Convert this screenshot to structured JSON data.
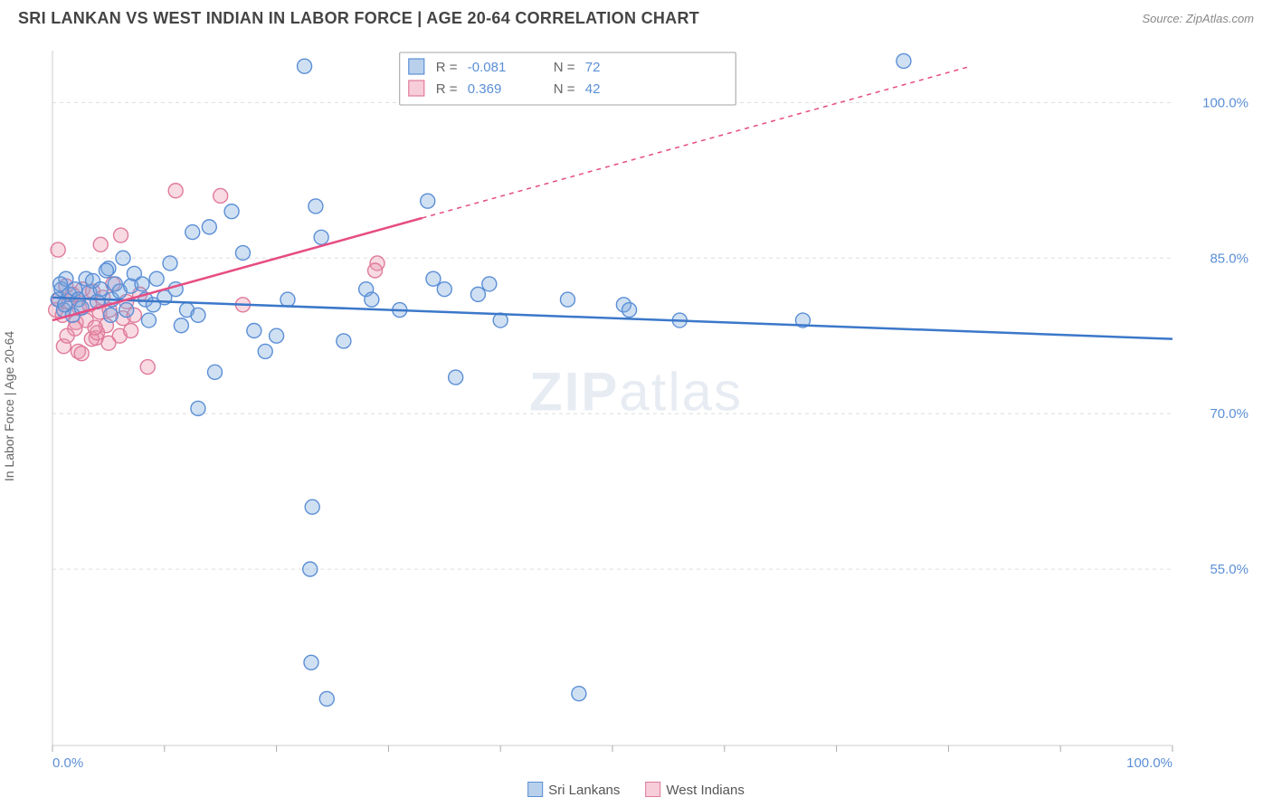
{
  "header": {
    "title": "SRI LANKAN VS WEST INDIAN IN LABOR FORCE | AGE 20-64 CORRELATION CHART",
    "source": "Source: ZipAtlas.com"
  },
  "ylabel": "In Labor Force | Age 20-64",
  "watermark": {
    "part1": "ZIP",
    "part2": "atlas"
  },
  "chart": {
    "type": "scatter-correlation",
    "xlim": [
      0,
      100
    ],
    "ylim": [
      38,
      105
    ],
    "x_ticks": [
      0,
      10,
      20,
      30,
      40,
      50,
      60,
      70,
      80,
      90,
      100
    ],
    "x_tick_labels": {
      "0": "0.0%",
      "100": "100.0%"
    },
    "y_ticks": [
      55,
      70,
      85,
      100
    ],
    "y_tick_labels": {
      "55": "55.0%",
      "70": "70.0%",
      "85": "85.0%",
      "100": "100.0%"
    },
    "grid_color": "#dddddd",
    "border_color": "#cccccc",
    "background": "#ffffff",
    "marker_radius": 8,
    "marker_stroke_width": 1.4,
    "series": [
      {
        "name": "Sri Lankans",
        "fill": "rgba(120,165,220,0.35)",
        "stroke": "#5b8fd6",
        "swatch_fill": "#b9d0ec",
        "swatch_stroke": "#5b8fd6",
        "trend_color": "#3b78c9",
        "trend": {
          "x1": 0,
          "y1": 81.2,
          "x2": 100,
          "y2": 77.2,
          "solid_until": 100
        },
        "R": "-0.081",
        "N": "72",
        "points": [
          [
            0.5,
            81
          ],
          [
            0.8,
            82
          ],
          [
            1,
            80
          ],
          [
            1.2,
            83
          ],
          [
            1.5,
            81.5
          ],
          [
            1.8,
            79.5
          ],
          [
            0.7,
            82.5
          ],
          [
            1.1,
            80.5
          ],
          [
            2,
            82
          ],
          [
            2.3,
            81
          ],
          [
            2.6,
            80.2
          ],
          [
            3,
            83
          ],
          [
            3.3,
            81.7
          ],
          [
            3.6,
            82.8
          ],
          [
            4,
            80.8
          ],
          [
            4.3,
            82
          ],
          [
            5,
            84
          ],
          [
            5.3,
            81
          ],
          [
            5.6,
            82.5
          ],
          [
            6,
            81.8
          ],
          [
            6.3,
            85
          ],
          [
            6.6,
            80
          ],
          [
            7,
            82.3
          ],
          [
            7.3,
            83.5
          ],
          [
            4.8,
            83.8
          ],
          [
            5.2,
            79.5
          ],
          [
            8,
            82.5
          ],
          [
            8.3,
            81
          ],
          [
            8.6,
            79
          ],
          [
            9,
            80.5
          ],
          [
            9.3,
            83
          ],
          [
            10,
            81.2
          ],
          [
            10.5,
            84.5
          ],
          [
            11,
            82
          ],
          [
            11.5,
            78.5
          ],
          [
            12,
            80
          ],
          [
            12.5,
            87.5
          ],
          [
            13,
            79.5
          ],
          [
            14,
            88
          ],
          [
            16,
            89.5
          ],
          [
            17,
            85.5
          ],
          [
            18,
            78
          ],
          [
            19,
            76
          ],
          [
            20,
            77.5
          ],
          [
            21,
            81
          ],
          [
            22.5,
            103.5
          ],
          [
            23.5,
            90
          ],
          [
            23,
            55
          ],
          [
            23.2,
            61
          ],
          [
            23.1,
            46
          ],
          [
            24,
            87
          ],
          [
            24.5,
            42.5
          ],
          [
            26,
            77
          ],
          [
            28,
            82
          ],
          [
            28.5,
            81
          ],
          [
            31,
            80
          ],
          [
            33.5,
            90.5
          ],
          [
            34,
            83
          ],
          [
            35,
            82
          ],
          [
            36,
            73.5
          ],
          [
            38,
            81.5
          ],
          [
            39,
            82.5
          ],
          [
            40,
            79
          ],
          [
            46,
            81
          ],
          [
            47,
            43
          ],
          [
            51,
            80.5
          ],
          [
            51.5,
            80
          ],
          [
            56,
            79
          ],
          [
            67,
            79
          ],
          [
            76,
            104
          ],
          [
            13,
            70.5
          ],
          [
            14.5,
            74
          ]
        ]
      },
      {
        "name": "West Indians",
        "fill": "rgba(235,150,175,0.35)",
        "stroke": "#e07b9a",
        "swatch_fill": "#f7cdd9",
        "swatch_stroke": "#e07b9a",
        "trend_color": "#e64d82",
        "trend": {
          "x1": 0,
          "y1": 79.0,
          "x2": 82,
          "y2": 103.5,
          "solid_until": 33
        },
        "R": "0.369",
        "N": "42",
        "points": [
          [
            0.3,
            80
          ],
          [
            0.6,
            81
          ],
          [
            0.9,
            79.5
          ],
          [
            1.2,
            82.3
          ],
          [
            1.5,
            80.8
          ],
          [
            1.8,
            81.5
          ],
          [
            2.1,
            78.8
          ],
          [
            2.4,
            80.2
          ],
          [
            2.7,
            82
          ],
          [
            3,
            79
          ],
          [
            3.3,
            80.5
          ],
          [
            3.6,
            81.8
          ],
          [
            3.9,
            77.3
          ],
          [
            4.2,
            79.8
          ],
          [
            4.5,
            81.2
          ],
          [
            4.8,
            78.5
          ],
          [
            5.1,
            80
          ],
          [
            5.4,
            82.5
          ],
          [
            0.5,
            85.8
          ],
          [
            1,
            76.5
          ],
          [
            2.3,
            76
          ],
          [
            3.5,
            77.2
          ],
          [
            4,
            77.8
          ],
          [
            2,
            78.2
          ],
          [
            4.3,
            86.3
          ],
          [
            6,
            77.5
          ],
          [
            6.3,
            79.2
          ],
          [
            6.6,
            80.8
          ],
          [
            7,
            78
          ],
          [
            7.3,
            79.5
          ],
          [
            1.3,
            77.5
          ],
          [
            2.6,
            75.8
          ],
          [
            3.8,
            78.3
          ],
          [
            5,
            76.8
          ],
          [
            6.1,
            87.2
          ],
          [
            7.8,
            81.5
          ],
          [
            8.5,
            74.5
          ],
          [
            11,
            91.5
          ],
          [
            15,
            91
          ],
          [
            17,
            80.5
          ],
          [
            29,
            84.5
          ],
          [
            28.8,
            83.8
          ]
        ]
      }
    ],
    "statbox": {
      "x": 31,
      "width_pct": 30,
      "rows": [
        {
          "swatch": 0,
          "R_label": "R =",
          "N_label": "N ="
        },
        {
          "swatch": 1,
          "R_label": "R =",
          "N_label": "N ="
        }
      ],
      "label_color": "#666666",
      "value_color": "#5b8fd6",
      "border_color": "#888888"
    }
  },
  "legend_bottom": [
    {
      "swatch": 0,
      "label": "Sri Lankans"
    },
    {
      "swatch": 1,
      "label": "West Indians"
    }
  ]
}
